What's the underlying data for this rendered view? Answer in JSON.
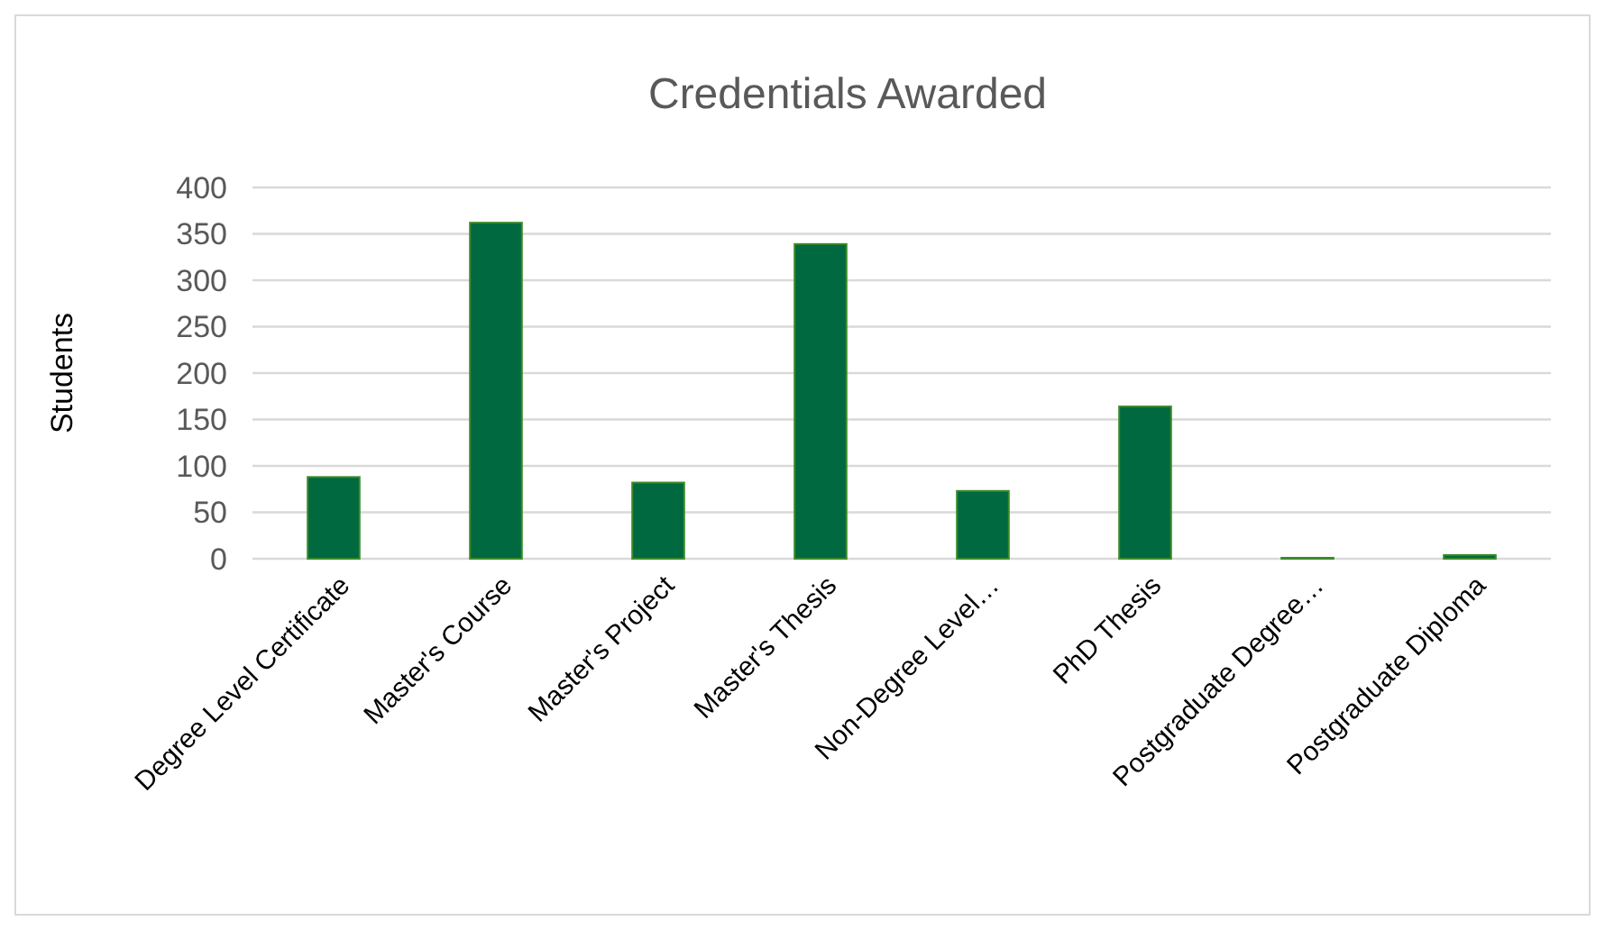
{
  "chart_data": {
    "type": "bar",
    "title": "Credentials Awarded",
    "ylabel": "Students",
    "categories": [
      "Degree Level Certificate",
      "Master's Course",
      "Master's Project",
      "Master's Thesis",
      "Non-Degree Level…",
      "PhD Thesis",
      "Postgraduate Degree…",
      "Postgraduate Diploma"
    ],
    "values": [
      88,
      362,
      82,
      339,
      73,
      164,
      1,
      4
    ],
    "color": "#006940",
    "ylim": [
      0,
      400
    ],
    "yticks": [
      0,
      50,
      100,
      150,
      200,
      250,
      300,
      350,
      400
    ],
    "grid": "y"
  }
}
